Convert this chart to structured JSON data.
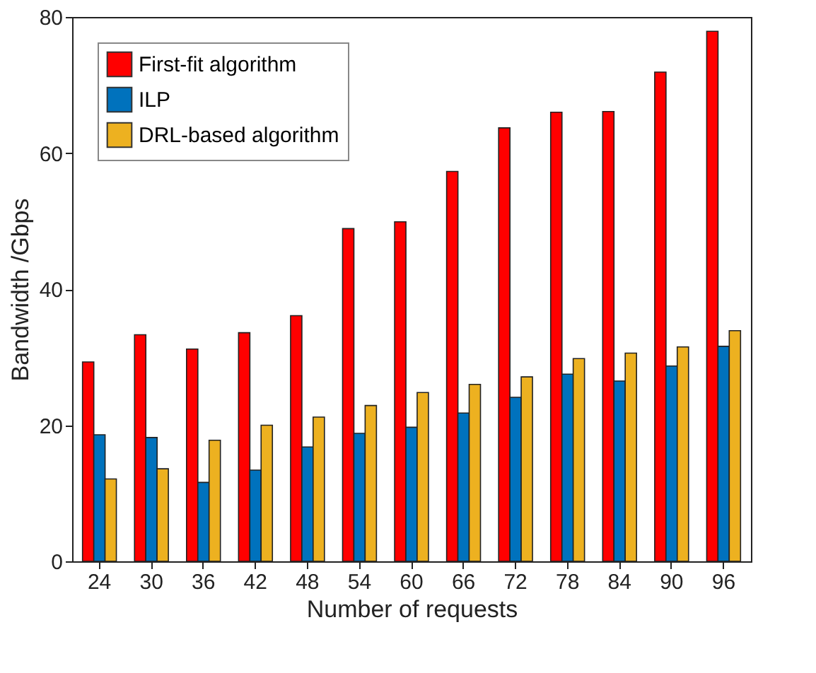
{
  "chart_data": {
    "type": "bar",
    "xlabel": "Number of requests",
    "ylabel": "Bandwidth /Gbps",
    "categories": [
      "24",
      "30",
      "36",
      "42",
      "48",
      "54",
      "60",
      "66",
      "72",
      "78",
      "84",
      "90",
      "96"
    ],
    "series": [
      {
        "name": "First-fit algorithm",
        "color": "#ff0000",
        "values": [
          29.3,
          33.3,
          31.2,
          33.6,
          36.1,
          48.9,
          49.9,
          57.3,
          63.7,
          66.0,
          66.1,
          71.9,
          77.9
        ]
      },
      {
        "name": "ILP",
        "color": "#0072bd",
        "values": [
          18.6,
          18.2,
          11.6,
          13.4,
          16.8,
          18.8,
          19.7,
          21.8,
          24.1,
          27.5,
          26.5,
          28.7,
          31.6
        ]
      },
      {
        "name": "DRL-based algorithm",
        "color": "#edb120",
        "values": [
          12.1,
          13.6,
          17.8,
          20.0,
          21.2,
          22.9,
          24.8,
          26.0,
          27.1,
          29.8,
          30.6,
          31.5,
          33.9
        ]
      }
    ],
    "ylim": [
      0,
      80
    ],
    "yticks": [
      0,
      20,
      40,
      60,
      80
    ],
    "grid": false,
    "legend": "top left"
  }
}
